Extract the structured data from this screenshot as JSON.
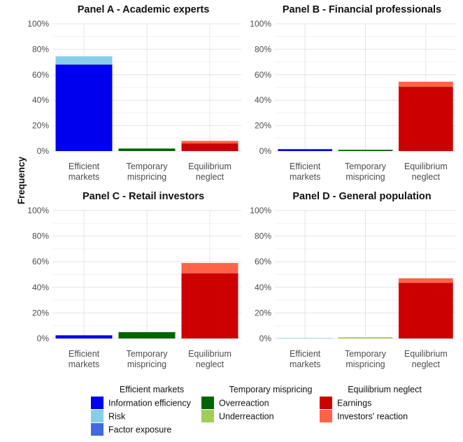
{
  "chart_data": {
    "type": "bar",
    "stacked": true,
    "ylabel": "Frequency",
    "ylim": [
      0,
      1
    ],
    "yticks": [
      "0%",
      "20%",
      "40%",
      "60%",
      "80%",
      "100%"
    ],
    "grid": true,
    "legend_position": "bottom",
    "categories": [
      {
        "key": "efficient",
        "line1": "Efficient",
        "line2": "markets"
      },
      {
        "key": "temporary",
        "line1": "Temporary",
        "line2": "mispricing"
      },
      {
        "key": "equilibrium",
        "line1": "Equilibrium",
        "line2": "neglect"
      }
    ],
    "legend": [
      {
        "title": "Efficient markets",
        "items": [
          {
            "key": "info",
            "label": "Information efficiency",
            "color": "#0000EE"
          },
          {
            "key": "risk",
            "label": "Risk",
            "color": "#87CEEB"
          },
          {
            "key": "factor",
            "label": "Factor exposure",
            "color": "#4169E1"
          }
        ]
      },
      {
        "title": "Temporary mispricing",
        "items": [
          {
            "key": "over",
            "label": "Overreaction",
            "color": "#006400"
          },
          {
            "key": "under",
            "label": "Underreaction",
            "color": "#A2CD5A"
          }
        ]
      },
      {
        "title": "Equilibrium neglect",
        "items": [
          {
            "key": "earn",
            "label": "Earnings",
            "color": "#CD0000"
          },
          {
            "key": "react",
            "label": "Investors' reaction",
            "color": "#FF6347"
          }
        ]
      }
    ],
    "panels": [
      {
        "title": "Panel A - Academic experts",
        "bars": {
          "efficient": [
            {
              "key": "info",
              "value": 0.68
            },
            {
              "key": "risk",
              "value": 0.065
            }
          ],
          "temporary": [
            {
              "key": "over",
              "value": 0.02
            }
          ],
          "equilibrium": [
            {
              "key": "earn",
              "value": 0.06
            },
            {
              "key": "react",
              "value": 0.02
            }
          ]
        }
      },
      {
        "title": "Panel B - Financial professionals",
        "bars": {
          "efficient": [
            {
              "key": "info",
              "value": 0.015
            }
          ],
          "temporary": [
            {
              "key": "over",
              "value": 0.01
            }
          ],
          "equilibrium": [
            {
              "key": "earn",
              "value": 0.505
            },
            {
              "key": "react",
              "value": 0.04
            }
          ]
        }
      },
      {
        "title": "Panel C - Retail investors",
        "bars": {
          "efficient": [
            {
              "key": "info",
              "value": 0.025
            }
          ],
          "temporary": [
            {
              "key": "over",
              "value": 0.05
            }
          ],
          "equilibrium": [
            {
              "key": "earn",
              "value": 0.51
            },
            {
              "key": "react",
              "value": 0.08
            }
          ]
        }
      },
      {
        "title": "Panel D - General population",
        "bars": {
          "efficient": [
            {
              "key": "risk",
              "value": 0.004
            }
          ],
          "temporary": [
            {
              "key": "under",
              "value": 0.01
            }
          ],
          "equilibrium": [
            {
              "key": "earn",
              "value": 0.435
            },
            {
              "key": "react",
              "value": 0.035
            }
          ]
        }
      }
    ]
  }
}
